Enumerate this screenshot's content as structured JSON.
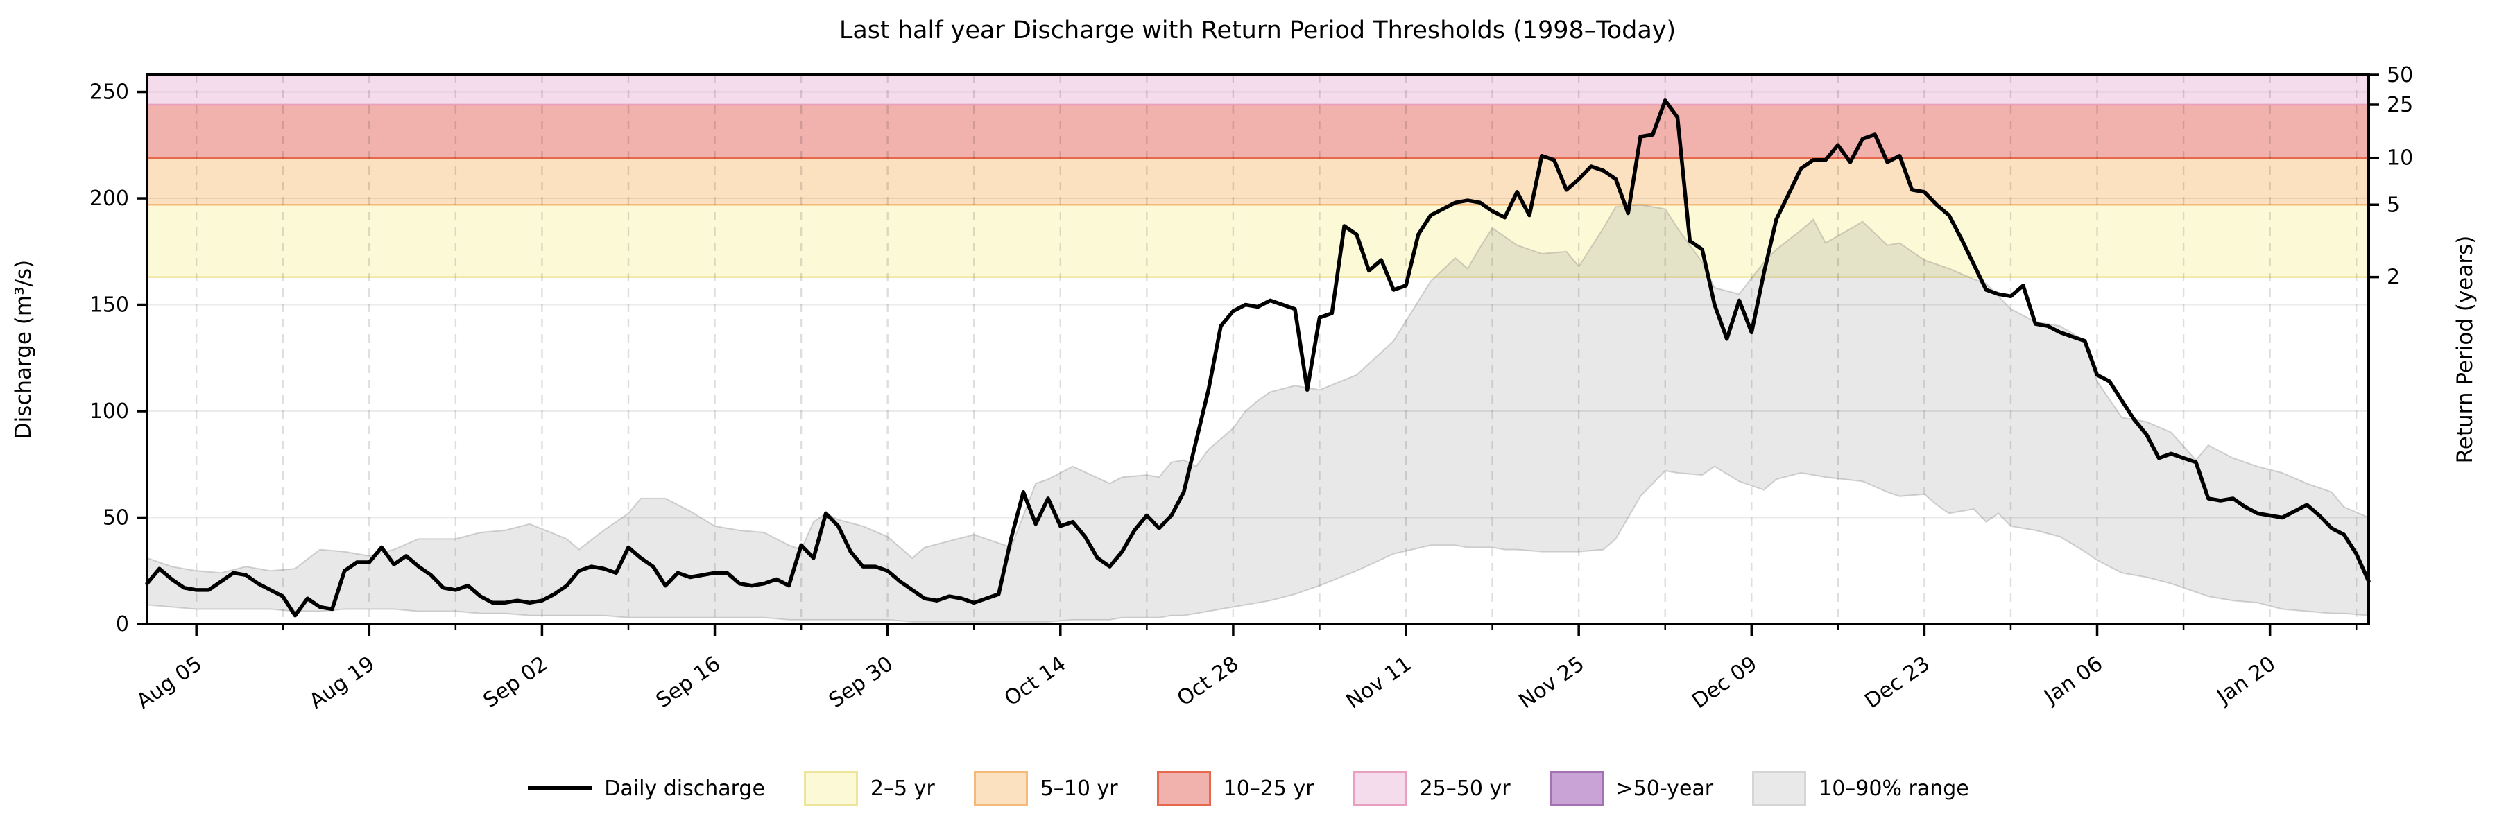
{
  "title": "Last half year Discharge with Return Period Thresholds (1998–Today)",
  "axes": {
    "y_left_label": "Discharge (m³/s)",
    "y_right_label": "Return Period (years)",
    "y_left_ticks": [
      0,
      50,
      100,
      150,
      200,
      250
    ],
    "y_max": 258,
    "y_right_ticks": [
      {
        "value": 163,
        "label": "2"
      },
      {
        "value": 197,
        "label": "5"
      },
      {
        "value": 219,
        "label": "10"
      },
      {
        "value": 244,
        "label": "25"
      },
      {
        "value": 258,
        "label": "50"
      }
    ],
    "x_major_ticks": [
      {
        "day": 4,
        "label": "Aug 05"
      },
      {
        "day": 18,
        "label": "Aug 19"
      },
      {
        "day": 32,
        "label": "Sep 02"
      },
      {
        "day": 46,
        "label": "Sep 16"
      },
      {
        "day": 60,
        "label": "Sep 30"
      },
      {
        "day": 74,
        "label": "Oct 14"
      },
      {
        "day": 88,
        "label": "Oct 28"
      },
      {
        "day": 102,
        "label": "Nov 11"
      },
      {
        "day": 116,
        "label": "Nov 25"
      },
      {
        "day": 130,
        "label": "Dec 09"
      },
      {
        "day": 144,
        "label": "Dec 23"
      },
      {
        "day": 158,
        "label": "Jan 06"
      },
      {
        "day": 172,
        "label": "Jan 20"
      }
    ],
    "x_minor_tick_days": [
      11,
      25,
      39,
      53,
      67,
      81,
      95,
      109,
      123,
      137,
      151,
      165,
      179
    ],
    "x_day_span": 180
  },
  "thresholds": [
    {
      "label": "2–5 yr",
      "from": 163,
      "to": 197,
      "fill": "#fcf9d7",
      "edge": "#eee59c",
      "visible": true
    },
    {
      "label": "5–10 yr",
      "from": 197,
      "to": 219,
      "fill": "#fbe1c0",
      "edge": "#f5b97a",
      "visible": true
    },
    {
      "label": "10–25 yr",
      "from": 219,
      "to": 244,
      "fill": "#f1b1ad",
      "edge": "#e5694f",
      "visible": true
    },
    {
      "label": "25–50 yr",
      "from": 244,
      "to": 258,
      "fill": "#f5dcec",
      "edge": "#e9a0bf",
      "visible": true
    },
    {
      "label": ">50-year",
      "from": 258,
      "to": 258,
      "fill": "#c9a3d6",
      "edge": "#a471b4",
      "visible": false
    }
  ],
  "legend": {
    "items": [
      {
        "type": "line",
        "label": "Daily discharge",
        "color": "#000000"
      },
      {
        "type": "patch",
        "label": "2–5 yr",
        "fill": "#fcf9d7",
        "edge": "#eee59c"
      },
      {
        "type": "patch",
        "label": "5–10 yr",
        "fill": "#fbe1c0",
        "edge": "#f5b97a"
      },
      {
        "type": "patch",
        "label": "10–25 yr",
        "fill": "#f1b1ad",
        "edge": "#e5694f"
      },
      {
        "type": "patch",
        "label": "25–50 yr",
        "fill": "#f5dcec",
        "edge": "#e9a0bf"
      },
      {
        "type": "patch",
        "label": ">50-year",
        "fill": "#c9a3d6",
        "edge": "#a471b4"
      },
      {
        "type": "patch",
        "label": "10–90% range",
        "fill": "#e9e9e9",
        "edge": "#d5d5d5"
      }
    ]
  },
  "chart_data": {
    "type": "line",
    "title": "Last half year Discharge with Return Period Thresholds (1998–Today)",
    "xlabel": "",
    "ylabel": "Discharge (m³/s)",
    "y2label": "Return Period (years)",
    "ylim": [
      0,
      258
    ],
    "x_start_date": "Aug 01",
    "x_end_date": "Jan 28",
    "x_unit": "day index from Aug 01",
    "grid": "weekly dashed vertical, 50-unit solid horizontal",
    "legend_position": "bottom center, no frame",
    "return_period_thresholds": {
      "2yr": 163,
      "5yr": 197,
      "10yr": 219,
      "25yr": 244,
      "50yr": 258
    },
    "series": [
      {
        "name": "Daily discharge",
        "values": [
          19,
          26,
          21,
          17,
          16,
          16,
          20,
          24,
          23,
          19,
          16,
          13,
          4,
          12,
          8,
          7,
          25,
          29,
          29,
          36,
          28,
          32,
          27,
          23,
          17,
          16,
          18,
          13,
          10,
          10,
          11,
          10,
          11,
          14,
          18,
          25,
          27,
          26,
          24,
          36,
          31,
          27,
          18,
          24,
          22,
          23,
          24,
          24,
          19,
          18,
          19,
          21,
          18,
          37,
          31,
          52,
          46,
          34,
          27,
          27,
          25,
          20,
          16,
          12,
          11,
          13,
          12,
          10,
          12,
          14,
          40,
          62,
          47,
          59,
          46,
          48,
          41,
          31,
          27,
          34,
          44,
          51,
          45,
          51,
          62,
          86,
          110,
          140,
          147,
          150,
          149,
          152,
          150,
          148,
          110,
          144,
          146,
          187,
          183,
          166,
          171,
          157,
          159,
          183,
          192,
          195,
          198,
          199,
          198,
          194,
          191,
          203,
          192,
          220,
          218,
          204,
          209,
          215,
          213,
          209,
          193,
          229,
          230,
          246,
          238,
          180,
          176,
          150,
          134,
          152,
          137,
          165,
          190,
          202,
          214,
          218,
          218,
          225,
          217,
          228,
          230,
          217,
          220,
          204,
          203,
          197,
          192,
          181,
          169,
          157,
          155,
          154,
          159,
          141,
          140,
          137,
          135,
          133,
          117,
          114,
          105,
          96,
          89,
          78,
          80,
          78,
          76,
          59,
          58,
          59,
          55,
          52,
          51,
          50,
          53,
          56,
          51,
          45,
          42,
          33,
          20
        ]
      }
    ],
    "band_10_90_range": {
      "name": "10–90% range",
      "points_day_lo_hi": [
        [
          0,
          9,
          31
        ],
        [
          2,
          8,
          27
        ],
        [
          4,
          7,
          25
        ],
        [
          6,
          7,
          24
        ],
        [
          8,
          7,
          27
        ],
        [
          10,
          7,
          25
        ],
        [
          12,
          6,
          26
        ],
        [
          14,
          6,
          35
        ],
        [
          16,
          7,
          34
        ],
        [
          18,
          7,
          32
        ],
        [
          20,
          7,
          35
        ],
        [
          22,
          6,
          40
        ],
        [
          25,
          6,
          40
        ],
        [
          27,
          5,
          43
        ],
        [
          29,
          5,
          44
        ],
        [
          31,
          4,
          47
        ],
        [
          34,
          4,
          40
        ],
        [
          35,
          4,
          35
        ],
        [
          37,
          4,
          44
        ],
        [
          39,
          3,
          52
        ],
        [
          40,
          3,
          59
        ],
        [
          42,
          3,
          59
        ],
        [
          44,
          3,
          53
        ],
        [
          46,
          3,
          46
        ],
        [
          48,
          3,
          44
        ],
        [
          50,
          3,
          43
        ],
        [
          52,
          2,
          37
        ],
        [
          53,
          2,
          35
        ],
        [
          54,
          2,
          48
        ],
        [
          55,
          2,
          52
        ],
        [
          56,
          2,
          49
        ],
        [
          58,
          2,
          46
        ],
        [
          60,
          2,
          41
        ],
        [
          62,
          1,
          31
        ],
        [
          63,
          1,
          36
        ],
        [
          67,
          1,
          42
        ],
        [
          70,
          1,
          36
        ],
        [
          72,
          1,
          66
        ],
        [
          73,
          1,
          68
        ],
        [
          75,
          2,
          74
        ],
        [
          78,
          2,
          66
        ],
        [
          79,
          3,
          69
        ],
        [
          81,
          3,
          70
        ],
        [
          82,
          3,
          69
        ],
        [
          83,
          4,
          76
        ],
        [
          84,
          4,
          77
        ],
        [
          85,
          5,
          74
        ],
        [
          86,
          6,
          82
        ],
        [
          88,
          8,
          92
        ],
        [
          89,
          9,
          100
        ],
        [
          90,
          10,
          105
        ],
        [
          91,
          11,
          109
        ],
        [
          93,
          14,
          112
        ],
        [
          95,
          18,
          110
        ],
        [
          98,
          25,
          117
        ],
        [
          101,
          33,
          133
        ],
        [
          104,
          37,
          161
        ],
        [
          106,
          37,
          172
        ],
        [
          107,
          36,
          167
        ],
        [
          108,
          36,
          177
        ],
        [
          109,
          36,
          186
        ],
        [
          110,
          35,
          182
        ],
        [
          111,
          35,
          178
        ],
        [
          113,
          34,
          174
        ],
        [
          115,
          34,
          175
        ],
        [
          116,
          34,
          168
        ],
        [
          118,
          35,
          186
        ],
        [
          119,
          40,
          196
        ],
        [
          121,
          60,
          197
        ],
        [
          123,
          72,
          195
        ],
        [
          124,
          71,
          186
        ],
        [
          126,
          70,
          170
        ],
        [
          127,
          74,
          158
        ],
        [
          129,
          67,
          155
        ],
        [
          131,
          63,
          170
        ],
        [
          132,
          68,
          176
        ],
        [
          134,
          71,
          185
        ],
        [
          135,
          70,
          190
        ],
        [
          136,
          69,
          179
        ],
        [
          139,
          67,
          189
        ],
        [
          141,
          62,
          178
        ],
        [
          142,
          60,
          179
        ],
        [
          144,
          61,
          171
        ],
        [
          145,
          56,
          169
        ],
        [
          146,
          52,
          167
        ],
        [
          148,
          54,
          162
        ],
        [
          149,
          48,
          160
        ],
        [
          150,
          52,
          154
        ],
        [
          151,
          46,
          148
        ],
        [
          153,
          44,
          142
        ],
        [
          155,
          41,
          140
        ],
        [
          157,
          34,
          133
        ],
        [
          158,
          30,
          114
        ],
        [
          160,
          24,
          97
        ],
        [
          162,
          22,
          95
        ],
        [
          164,
          19,
          90
        ],
        [
          166,
          15,
          77
        ],
        [
          167,
          13,
          84
        ],
        [
          169,
          11,
          78
        ],
        [
          171,
          10,
          74
        ],
        [
          173,
          7,
          71
        ],
        [
          175,
          6,
          66
        ],
        [
          177,
          5,
          62
        ],
        [
          178,
          5,
          55
        ],
        [
          180,
          4,
          50
        ]
      ]
    }
  },
  "style": {
    "line_color": "#000000",
    "band_fill_rgba": "rgba(125,125,125,0.18)",
    "band_edge_rgba": "rgba(125,125,125,0.32)",
    "h_grid_rgba": "rgba(0,0,0,0.08)",
    "v_grid_rgba": "rgba(0,0,0,0.13)",
    "spine_color": "#000000"
  }
}
